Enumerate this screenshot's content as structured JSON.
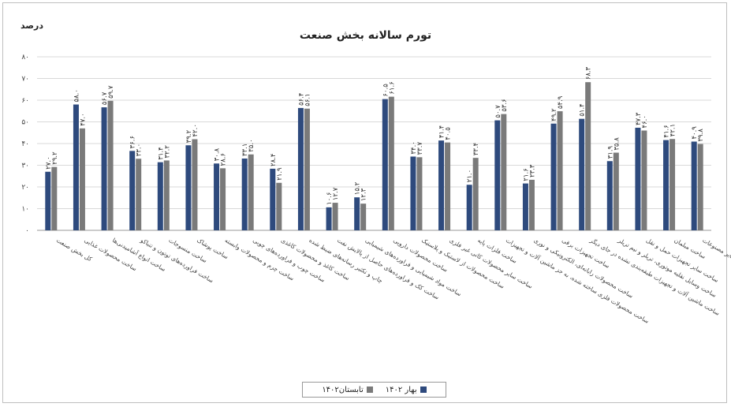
{
  "chart_data": {
    "type": "bar",
    "title": "تورم سالانه بخش صنعت",
    "ylabel": "درصد",
    "ylim": [
      0,
      80
    ],
    "yticks": [
      "۰",
      "۱۰",
      "۲۰",
      "۳۰",
      "۴۰",
      "۵۰",
      "۶۰",
      "۷۰",
      "۸۰"
    ],
    "grid": true,
    "legend_position": "bottom",
    "categories": [
      "کل بخش صنعت",
      "ساخت محصولات غذایی",
      "ساخت انواع آشامیدنی‌ها",
      "ساخت فراورده‌های توتون و تنباکو",
      "ساخت منسوجات",
      "ساخت پوشاک",
      "ساخت چرم و محصولات وابسته",
      "ساخت چوب و فراورده‌های چوبی",
      "ساخت کاغذ و محصولات کاغذی",
      "چاپ و تکثیر رسانه‌های ضبط شده",
      "ساخت کک و فراورده‌های حاصل از پالایش نفت",
      "ساخت مواد شیمیایی و فراورده‌های شیمیایی",
      "ساخت محصولات دارویی",
      "ساخت محصولات از لاستیک و پلاستیک",
      "ساخت سایر محصولات کانی غیر فلزی",
      "ساخت فلزات پایه",
      "ساخت محصولات فلزی ساخته شده، به جز ماشین آلات و تجهیزات",
      "ساخت محصولات رایانه‌ای، الکترونیکی و نوری",
      "ساخت تجهیزات برقی",
      "ساخت ماشین آلات و تجهیزات طبقه‌بندی نشده در جای دیگر",
      "ساخت وسایل نقلیه موتوری، تریلر و نیم تریلر",
      "ساخت سایر تجهیزات حمل و نقل",
      "ساخت مبلمان",
      "ساخت سایر مصنوعات"
    ],
    "series": [
      {
        "name": "بهار ۱۴۰۲",
        "color": "#2e4a7d",
        "values": [
          27.0,
          58.0,
          56.7,
          36.6,
          31.4,
          39.2,
          30.8,
          33.1,
          28.4,
          56.4,
          10.6,
          15.2,
          60.5,
          34.0,
          41.4,
          21.0,
          50.7,
          21.6,
          49.2,
          51.4,
          31.9,
          47.3,
          41.6,
          40.9
        ],
        "labels": [
          "۲۷.۰",
          "۵۸.۰",
          "۵۶.۷",
          "۳۶.۶",
          "۳۱.۴",
          "۳۹.۲",
          "۳۰.۸",
          "۳۳.۱",
          "۲۸.۴",
          "۵۶.۴",
          "۱۰.۶",
          "۱۵.۲",
          "۶۰.۵",
          "۳۴.۰",
          "۴۱.۴",
          "۲۱.۰",
          "۵۰.۷",
          "۲۱.۶",
          "۴۹.۲",
          "۵۱.۴",
          "۳۱.۹",
          "۴۷.۳",
          "۴۱.۶",
          "۴۰.۹"
        ]
      },
      {
        "name": "تابستان۱۴۰۲",
        "color": "#7a7a7a",
        "values": [
          29.2,
          47.0,
          59.7,
          33.0,
          32.2,
          42.0,
          28.6,
          35.0,
          21.9,
          56.1,
          12.7,
          12.3,
          61.6,
          33.7,
          40.5,
          33.4,
          53.6,
          23.3,
          54.9,
          68.3,
          35.8,
          46.0,
          42.1,
          39.8
        ],
        "labels": [
          "۲۹.۲",
          "۴۷.۰",
          "۵۹.۷",
          "۳۳.۰",
          "۳۲.۲",
          "۴۲.۰",
          "۲۸.۶",
          "۳۵.۰",
          "۲۱.۹",
          "۵۶.۱",
          "۱۲.۷",
          "۱۲.۳",
          "۶۱.۶",
          "۳۳.۷",
          "۴۰.۵",
          "۳۳.۴",
          "۵۳.۶",
          "۲۳.۳",
          "۵۴.۹",
          "۶۸.۳",
          "۳۵.۸",
          "۴۶.۰",
          "۴۲.۱",
          "۳۹.۸"
        ]
      }
    ]
  }
}
